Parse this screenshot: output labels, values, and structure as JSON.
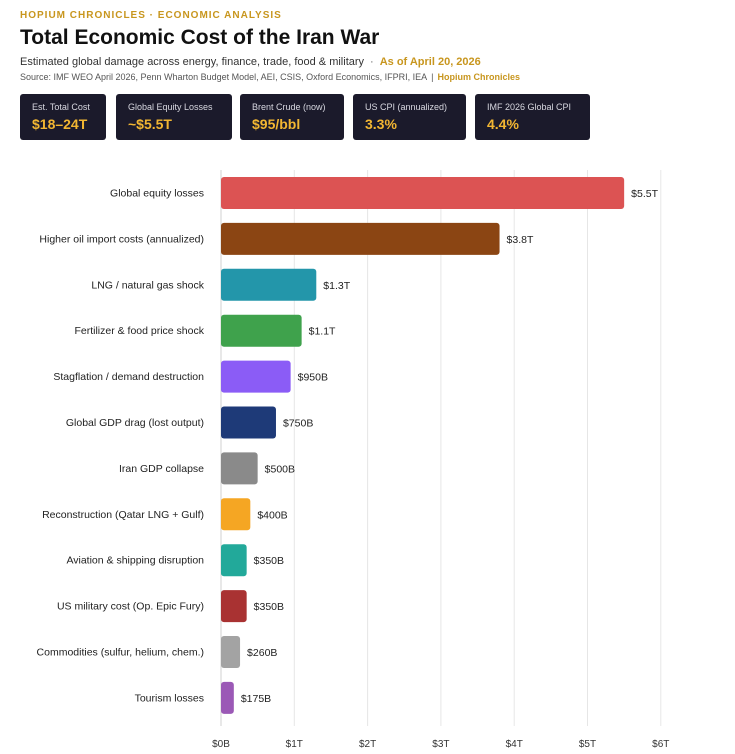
{
  "header": {
    "kicker": "HOPIUM CHRONICLES · ECONOMIC ANALYSIS",
    "title": "Total Economic Cost of the Iran War",
    "subtitle": "Estimated global damage across energy, finance, trade, food & military",
    "separator": "·",
    "as_of": "As of April 20, 2026",
    "source": "Source: IMF WEO April 2026, Penn Wharton Budget Model, AEI, CSIS, Oxford Economics, IFPRI, IEA",
    "source_pipe": "|",
    "brand": "Hopium Chronicles"
  },
  "stats": [
    {
      "label": "Est. Total Cost",
      "value": "$18–24T"
    },
    {
      "label": "Global Equity Losses",
      "value": "~$5.5T"
    },
    {
      "label": "Brent Crude (now)",
      "value": "$95/bbl"
    },
    {
      "label": "US CPI (annualized)",
      "value": "3.3%"
    },
    {
      "label": "IMF 2026 Global CPI",
      "value": "4.4%"
    }
  ],
  "chart_data": {
    "type": "bar",
    "orientation": "horizontal",
    "unit": "trillion USD",
    "categories": [
      "Global equity losses",
      "Higher oil import costs (annualized)",
      "LNG / natural gas shock",
      "Fertilizer & food price shock",
      "Stagflation / demand destruction",
      "Global GDP drag (lost output)",
      "Iran GDP collapse",
      "Reconstruction (Qatar LNG + Gulf)",
      "Aviation & shipping disruption",
      "US military cost (Op. Epic Fury)",
      "Commodities (sulfur, helium, chem.)",
      "Tourism losses"
    ],
    "values": [
      5.5,
      3.8,
      1.3,
      1.1,
      0.95,
      0.75,
      0.5,
      0.4,
      0.35,
      0.35,
      0.26,
      0.175
    ],
    "value_labels": [
      "$5.5T",
      "$3.8T",
      "$1.3T",
      "$1.1T",
      "$950B",
      "$750B",
      "$500B",
      "$400B",
      "$350B",
      "$350B",
      "$260B",
      "$175B"
    ],
    "colors": [
      "#dc5353",
      "#8b4513",
      "#2396aa",
      "#3fa24c",
      "#8b5cf6",
      "#1e3a78",
      "#8a8a8a",
      "#f5a623",
      "#22a99a",
      "#a93232",
      "#a3a3a3",
      "#9b59b6"
    ],
    "xlim": [
      0,
      6
    ],
    "xticks": [
      0,
      1,
      2,
      3,
      4,
      5,
      6
    ],
    "xtick_labels": [
      "$0B",
      "$1T",
      "$2T",
      "$3T",
      "$4T",
      "$5T",
      "$6T"
    ],
    "grid": true
  }
}
